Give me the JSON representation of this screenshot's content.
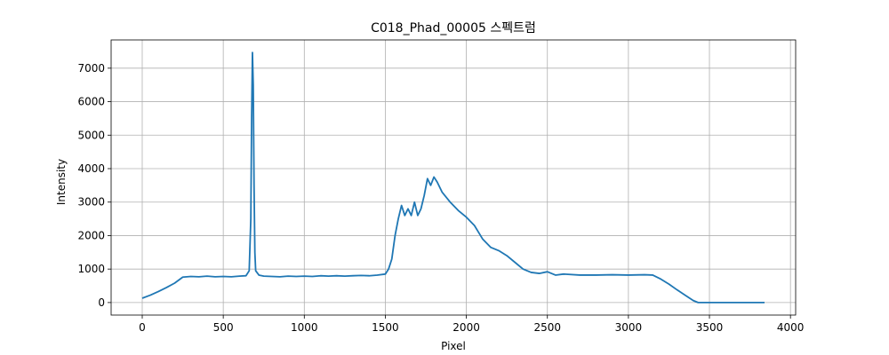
{
  "chart_data": {
    "type": "line",
    "title": "C018_Phad_00005 스펙트럼",
    "xlabel": "Pixel",
    "ylabel": "Intensity",
    "x": [
      0,
      50,
      100,
      150,
      200,
      250,
      300,
      350,
      400,
      450,
      500,
      550,
      600,
      640,
      660,
      670,
      675,
      680,
      685,
      690,
      695,
      700,
      720,
      750,
      800,
      850,
      900,
      950,
      1000,
      1050,
      1100,
      1150,
      1200,
      1250,
      1300,
      1350,
      1400,
      1450,
      1500,
      1520,
      1540,
      1560,
      1580,
      1600,
      1620,
      1640,
      1660,
      1680,
      1700,
      1720,
      1740,
      1760,
      1780,
      1800,
      1820,
      1850,
      1900,
      1950,
      2000,
      2050,
      2100,
      2150,
      2200,
      2250,
      2300,
      2350,
      2400,
      2450,
      2500,
      2550,
      2600,
      2700,
      2800,
      2900,
      3000,
      3100,
      3150,
      3200,
      3250,
      3300,
      3350,
      3400,
      3430,
      3500,
      3840
    ],
    "series": [
      {
        "name": "Intensity",
        "color": "#1f77b4",
        "values": [
          130,
          220,
          330,
          450,
          580,
          760,
          780,
          770,
          790,
          770,
          780,
          770,
          790,
          800,
          950,
          2500,
          5500,
          7470,
          6500,
          3500,
          1500,
          950,
          820,
          790,
          780,
          770,
          790,
          780,
          790,
          780,
          800,
          790,
          800,
          790,
          800,
          810,
          800,
          820,
          850,
          1000,
          1300,
          2000,
          2500,
          2900,
          2600,
          2800,
          2600,
          3000,
          2600,
          2800,
          3200,
          3700,
          3500,
          3750,
          3600,
          3300,
          3000,
          2750,
          2550,
          2300,
          1900,
          1650,
          1550,
          1400,
          1200,
          1000,
          900,
          870,
          920,
          820,
          850,
          820,
          820,
          830,
          820,
          830,
          820,
          700,
          550,
          380,
          220,
          60,
          0,
          0,
          0
        ]
      }
    ],
    "xlim": [
      -192,
      4032
    ],
    "ylim": [
      -374,
      7844
    ],
    "xticks": [
      0,
      500,
      1000,
      1500,
      2000,
      2500,
      3000,
      3500,
      4000
    ],
    "yticks": [
      0,
      1000,
      2000,
      3000,
      4000,
      5000,
      6000,
      7000
    ],
    "grid": true
  }
}
